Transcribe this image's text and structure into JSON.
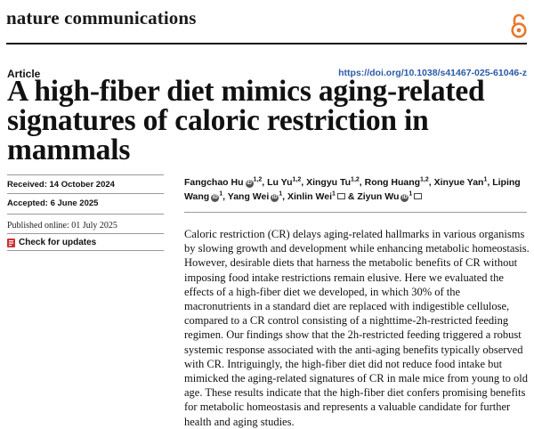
{
  "header": {
    "journal": "nature communications",
    "open_access_icon": "open-access-icon"
  },
  "article": {
    "type": "Article",
    "doi": "https://doi.org/10.1038/s41467-025-61046-z",
    "title_line1": "A high-fiber diet mimics aging-related",
    "title_line2": "signatures of caloric restriction in mammals"
  },
  "dates": {
    "received": "Received: 14 October 2024",
    "accepted": "Accepted: 6 June 2025",
    "published": "Published online: 01 July 2025"
  },
  "check_updates": "Check for updates",
  "authors": [
    {
      "name": "Fangchao Hu",
      "sup": "1,2",
      "orcid": true,
      "mail": false,
      "sep": ", "
    },
    {
      "name": "Lu Yu",
      "sup": "1,2",
      "orcid": false,
      "mail": false,
      "sep": ", "
    },
    {
      "name": "Xingyu Tu",
      "sup": "1,2",
      "orcid": false,
      "mail": false,
      "sep": ", "
    },
    {
      "name": "Rong Huang",
      "sup": "1,2",
      "orcid": false,
      "mail": false,
      "sep": ", "
    },
    {
      "name": "Xinyue Yan",
      "sup": "1",
      "orcid": false,
      "mail": false,
      "sep": ", "
    },
    {
      "name": "Liping Wang",
      "sup": "1",
      "orcid": true,
      "mail": false,
      "sep": ", "
    },
    {
      "name": "Yang Wei",
      "sup": "1",
      "orcid": true,
      "mail": false,
      "sep": ", "
    },
    {
      "name": "Xinlin Wei",
      "sup": "1",
      "orcid": false,
      "mail": true,
      "sep": " & "
    },
    {
      "name": "Ziyun Wu",
      "sup": "1",
      "orcid": true,
      "mail": true,
      "sep": ""
    }
  ],
  "abstract": "Caloric restriction (CR) delays aging-related hallmarks in various organisms by slowing growth and development while enhancing metabolic homeostasis. However, desirable diets that harness the metabolic benefits of CR without imposing food intake restrictions remain elusive. Here we evaluated the effects of a high-fiber diet we developed, in which 30% of the macronutrients in a standard diet are replaced with indigestible cellulose, compared to a CR control consisting of a nighttime-2h-restricted feeding regimen. Our findings show that the 2h-restricted feeding triggered a robust systemic response associated with the anti-aging benefits typically observed with CR. Intriguingly, the high-fiber diet did not reduce food intake but mimicked the aging-related signatures of CR in male mice from young to old age. These results indicate that the high-fiber diet confers promising benefits for metabolic homeostasis and represents a valuable candidate for further health and aging studies."
}
